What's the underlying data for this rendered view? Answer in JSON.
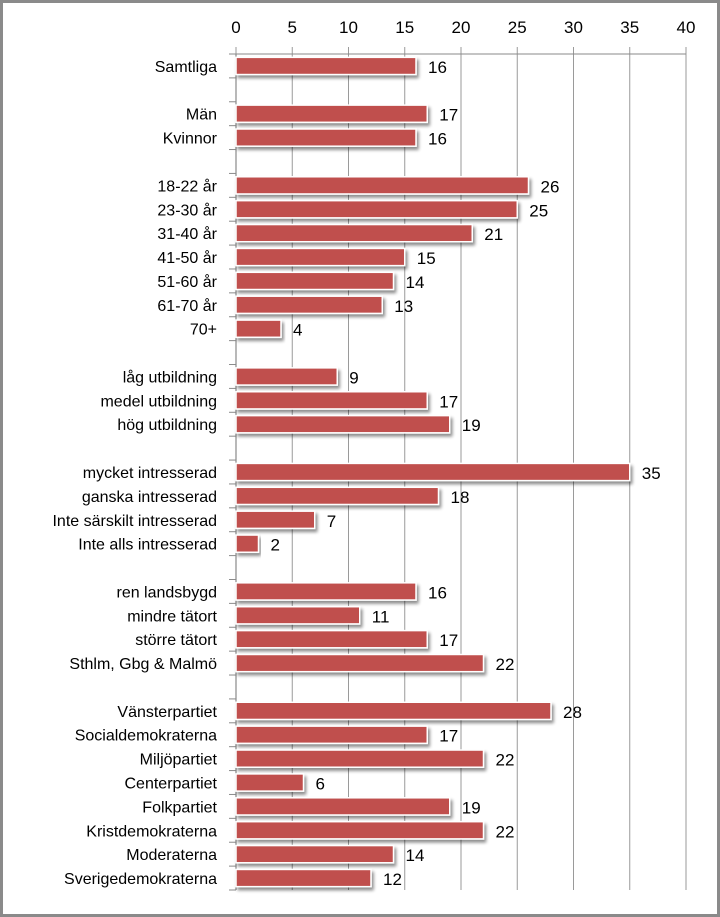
{
  "chart_data": {
    "type": "bar",
    "orientation": "horizontal",
    "title": "",
    "xlabel": "",
    "ylabel": "",
    "xlim": [
      0,
      40
    ],
    "x_ticks": [
      0,
      5,
      10,
      15,
      20,
      25,
      30,
      35,
      40
    ],
    "x_axis_position": "top",
    "grid": true,
    "legend": "none",
    "bar_color": "#C0504D",
    "show_data_labels": true,
    "rows": [
      {
        "label": "Samtliga",
        "value": 16
      },
      {
        "label": "",
        "value": null
      },
      {
        "label": "Män",
        "value": 17
      },
      {
        "label": "Kvinnor",
        "value": 16
      },
      {
        "label": "",
        "value": null
      },
      {
        "label": "18-22 år",
        "value": 26
      },
      {
        "label": "23-30 år",
        "value": 25
      },
      {
        "label": "31-40 år",
        "value": 21
      },
      {
        "label": "41-50 år",
        "value": 15
      },
      {
        "label": "51-60 år",
        "value": 14
      },
      {
        "label": "61-70 år",
        "value": 13
      },
      {
        "label": "70+",
        "value": 4
      },
      {
        "label": "",
        "value": null
      },
      {
        "label": "låg utbildning",
        "value": 9
      },
      {
        "label": "medel utbildning",
        "value": 17
      },
      {
        "label": "hög utbildning",
        "value": 19
      },
      {
        "label": "",
        "value": null
      },
      {
        "label": "mycket intresserad",
        "value": 35
      },
      {
        "label": "ganska intresserad",
        "value": 18
      },
      {
        "label": "Inte särskilt intresserad",
        "value": 7
      },
      {
        "label": "Inte alls intresserad",
        "value": 2
      },
      {
        "label": "",
        "value": null
      },
      {
        "label": "ren landsbygd",
        "value": 16
      },
      {
        "label": "mindre tätort",
        "value": 11
      },
      {
        "label": "större tätort",
        "value": 17
      },
      {
        "label": "Sthlm, Gbg & Malmö",
        "value": 22
      },
      {
        "label": "",
        "value": null
      },
      {
        "label": "Vänsterpartiet",
        "value": 28
      },
      {
        "label": "Socialdemokraterna",
        "value": 17
      },
      {
        "label": "Miljöpartiet",
        "value": 22
      },
      {
        "label": "Centerpartiet",
        "value": 6
      },
      {
        "label": "Folkpartiet",
        "value": 19
      },
      {
        "label": "Kristdemokraterna",
        "value": 22
      },
      {
        "label": "Moderaterna",
        "value": 14
      },
      {
        "label": "Sverigedemokraterna",
        "value": 12
      }
    ]
  }
}
